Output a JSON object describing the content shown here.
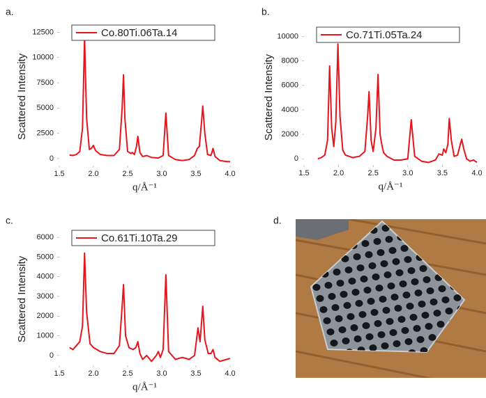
{
  "chart_data": [
    {
      "type": "line",
      "panel": "a.",
      "ylabel": "Scattered Intensity",
      "xlabel": "q/Å⁻¹",
      "x": [
        1.65,
        1.7,
        1.75,
        1.8,
        1.84,
        1.87,
        1.9,
        1.94,
        1.97,
        2.0,
        2.03,
        2.1,
        2.2,
        2.3,
        2.38,
        2.42,
        2.44,
        2.46,
        2.5,
        2.55,
        2.57,
        2.6,
        2.63,
        2.65,
        2.68,
        2.72,
        2.78,
        2.85,
        2.95,
        3.02,
        3.06,
        3.1,
        3.2,
        3.3,
        3.4,
        3.48,
        3.52,
        3.55,
        3.58,
        3.6,
        3.63,
        3.67,
        3.72,
        3.75,
        3.78,
        3.85,
        3.95,
        4.0
      ],
      "series": [
        {
          "name": "Co.80Ti.06Ta.14",
          "color": "#e8141b",
          "values": [
            350,
            300,
            400,
            700,
            3000,
            12000,
            4000,
            900,
            1000,
            1300,
            800,
            400,
            300,
            300,
            900,
            5000,
            8300,
            4000,
            700,
            500,
            600,
            400,
            1200,
            2200,
            600,
            200,
            300,
            100,
            50,
            300,
            4500,
            300,
            -100,
            -200,
            -100,
            300,
            1000,
            1200,
            3500,
            5200,
            2500,
            400,
            300,
            1000,
            200,
            -200,
            -300,
            -300
          ]
        }
      ],
      "xlim": [
        1.5,
        4.0
      ],
      "ylim": [
        -700,
        13500
      ],
      "xticks": [
        1.5,
        {
          "value": 2,
          "label": "2.0"
        },
        2.5,
        {
          "value": 3,
          "label": "3.0"
        },
        3.5,
        {
          "value": 4,
          "label": "4.0"
        }
      ],
      "yticks": [
        0,
        2500,
        5000,
        7500,
        10000,
        12500
      ]
    },
    {
      "type": "line",
      "panel": "b.",
      "ylabel": "Scattered Intensity",
      "xlabel": "q/Å⁻¹",
      "x": [
        1.7,
        1.75,
        1.8,
        1.84,
        1.87,
        1.9,
        1.93,
        1.96,
        1.99,
        2.02,
        2.06,
        2.1,
        2.2,
        2.3,
        2.38,
        2.42,
        2.44,
        2.47,
        2.5,
        2.54,
        2.57,
        2.6,
        2.62,
        2.65,
        2.7,
        2.8,
        2.9,
        3.0,
        3.05,
        3.1,
        3.2,
        3.3,
        3.4,
        3.45,
        3.5,
        3.52,
        3.55,
        3.58,
        3.6,
        3.63,
        3.67,
        3.72,
        3.76,
        3.78,
        3.81,
        3.85,
        3.9,
        3.95,
        4.0
      ],
      "series": [
        {
          "name": "Co.71Ti.05Ta.24",
          "color": "#e8141b",
          "values": [
            0,
            100,
            300,
            1500,
            7600,
            2500,
            1000,
            3000,
            9400,
            3500,
            700,
            300,
            100,
            200,
            600,
            3500,
            5500,
            1500,
            600,
            2500,
            6900,
            2000,
            1300,
            500,
            200,
            -100,
            -100,
            0,
            3200,
            200,
            -200,
            -300,
            -100,
            400,
            300,
            800,
            500,
            1200,
            3300,
            1500,
            200,
            300,
            1200,
            1600,
            800,
            0,
            -200,
            -100,
            -300
          ]
        }
      ],
      "xlim": [
        1.5,
        4.0
      ],
      "ylim": [
        -500,
        11000
      ],
      "xticks": [
        1.5,
        {
          "value": 2,
          "label": "2.0"
        },
        2.5,
        {
          "value": 3,
          "label": "3.0"
        },
        3.5,
        {
          "value": 4,
          "label": "4.0"
        }
      ],
      "yticks": [
        0,
        2000,
        4000,
        6000,
        8000,
        10000
      ]
    },
    {
      "type": "line",
      "panel": "c.",
      "ylabel": "Scattered Intensity",
      "xlabel": "q/Å⁻¹",
      "x": [
        1.65,
        1.7,
        1.75,
        1.8,
        1.84,
        1.87,
        1.9,
        1.95,
        2.0,
        2.1,
        2.2,
        2.3,
        2.38,
        2.42,
        2.44,
        2.47,
        2.52,
        2.58,
        2.62,
        2.65,
        2.68,
        2.72,
        2.78,
        2.85,
        2.92,
        2.95,
        2.98,
        3.02,
        3.06,
        3.1,
        3.2,
        3.3,
        3.4,
        3.48,
        3.53,
        3.56,
        3.6,
        3.63,
        3.68,
        3.72,
        3.75,
        3.78,
        3.85,
        3.95,
        4.0
      ],
      "series": [
        {
          "name": "Co.61Ti.10Ta.29",
          "color": "#e8141b",
          "values": [
            400,
            300,
            500,
            700,
            1500,
            5200,
            2200,
            600,
            400,
            200,
            100,
            100,
            500,
            2500,
            3600,
            1000,
            400,
            300,
            400,
            700,
            100,
            -200,
            0,
            -300,
            0,
            200,
            -100,
            300,
            4100,
            200,
            -200,
            -100,
            -200,
            0,
            1400,
            700,
            2500,
            800,
            100,
            100,
            300,
            -100,
            -300,
            -200,
            -150
          ]
        }
      ],
      "xlim": [
        1.5,
        4.0
      ],
      "ylim": [
        -500,
        6500
      ],
      "xticks": [
        1.5,
        {
          "value": 2,
          "label": "2.0"
        },
        2.5,
        {
          "value": 3,
          "label": "3.0"
        },
        3.5,
        {
          "value": 4,
          "label": "4.0"
        }
      ],
      "yticks": [
        0,
        1000,
        2000,
        3000,
        4000,
        5000,
        6000
      ]
    }
  ],
  "photo": {
    "label": "d."
  }
}
